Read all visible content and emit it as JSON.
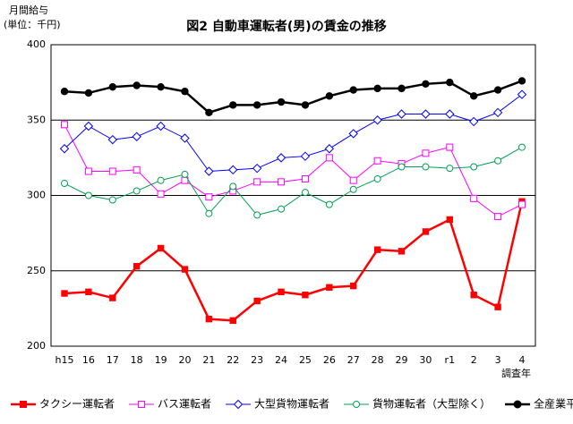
{
  "chart_data": {
    "type": "line",
    "title": "図2 自動車運転者(男)の賃金の推移",
    "y_label": "月間給与",
    "y_unit": "(単位：千円)",
    "x_label": "調査年",
    "categories": [
      "h15",
      "16",
      "17",
      "18",
      "19",
      "20",
      "21",
      "22",
      "23",
      "24",
      "25",
      "26",
      "27",
      "28",
      "29",
      "30",
      "r1",
      "2",
      "3",
      "4"
    ],
    "ylim": [
      200,
      400
    ],
    "yticks": [
      200,
      250,
      300,
      350,
      400
    ],
    "grid": true,
    "legend": "bottom",
    "series": [
      {
        "name": "タクシー運転者",
        "color": "#ff0000",
        "marker": "filled-square",
        "values": [
          235,
          236,
          232,
          253,
          265,
          251,
          218,
          217,
          230,
          236,
          234,
          239,
          240,
          264,
          263,
          276,
          284,
          234,
          226,
          296
        ]
      },
      {
        "name": "バス運転者",
        "color": "#ff00ff",
        "marker": "open-square",
        "values": [
          347,
          316,
          316,
          317,
          301,
          310,
          299,
          303,
          309,
          309,
          311,
          325,
          310,
          323,
          321,
          328,
          332,
          298,
          286,
          294
        ]
      },
      {
        "name": "大型貨物運転者",
        "color": "#0000ff",
        "marker": "open-diamond",
        "values": [
          331,
          346,
          337,
          339,
          346,
          338,
          316,
          317,
          318,
          325,
          326,
          331,
          341,
          350,
          354,
          354,
          354,
          349,
          355,
          367
        ]
      },
      {
        "name": "貨物運転者（大型除く）",
        "color": "#00a050",
        "marker": "open-circle",
        "values": [
          308,
          300,
          297,
          303,
          310,
          314,
          288,
          306,
          287,
          291,
          302,
          294,
          304,
          311,
          319,
          319,
          318,
          319,
          323,
          332
        ]
      },
      {
        "name": "全産業平均",
        "color": "#000000",
        "marker": "filled-circle",
        "values": [
          369,
          368,
          372,
          373,
          372,
          369,
          355,
          360,
          360,
          362,
          360,
          366,
          370,
          371,
          371,
          374,
          375,
          366,
          370,
          376
        ]
      }
    ]
  }
}
